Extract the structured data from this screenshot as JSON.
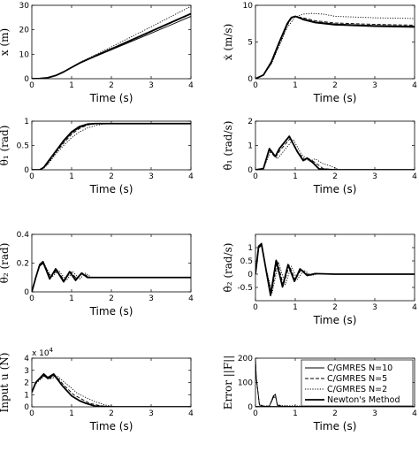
{
  "chart_data": [
    {
      "id": "x",
      "type": "line",
      "ylabel": "x (m)",
      "xlabel": "Time (s)",
      "xlim": [
        0,
        4
      ],
      "ylim": [
        0,
        30
      ],
      "xticks": [
        0,
        1,
        2,
        3,
        4
      ],
      "yticks": [
        0,
        10,
        20,
        30
      ],
      "series": [
        {
          "x": [
            0,
            0.2,
            0.4,
            0.6,
            0.8,
            1.0,
            1.2,
            1.5,
            2.0,
            2.5,
            3.0,
            3.5,
            4.0
          ],
          "y": [
            0,
            0.1,
            0.4,
            1.3,
            2.8,
            4.6,
            6.3,
            8.4,
            11.8,
            15.2,
            18.6,
            22.0,
            25.5
          ]
        },
        {
          "x": [
            0,
            0.2,
            0.4,
            0.6,
            0.8,
            1.0,
            1.2,
            1.5,
            2.0,
            2.5,
            3.0,
            3.5,
            4.0
          ],
          "y": [
            0,
            0.1,
            0.4,
            1.3,
            2.8,
            4.6,
            6.3,
            8.5,
            12.0,
            15.6,
            19.2,
            22.8,
            26.4
          ]
        },
        {
          "x": [
            0,
            0.2,
            0.4,
            0.6,
            0.8,
            1.0,
            1.2,
            1.5,
            2.0,
            2.5,
            3.0,
            3.5,
            4.0
          ],
          "y": [
            0,
            0.1,
            0.4,
            1.3,
            2.8,
            4.7,
            6.6,
            9.0,
            13.0,
            17.1,
            21.2,
            25.4,
            29.6
          ]
        },
        {
          "x": [
            0,
            0.2,
            0.4,
            0.6,
            0.8,
            1.0,
            1.2,
            1.5,
            2.0,
            2.5,
            3.0,
            3.5,
            4.0
          ],
          "y": [
            0,
            0.1,
            0.4,
            1.3,
            2.8,
            4.6,
            6.4,
            8.6,
            12.2,
            15.8,
            19.4,
            23.0,
            26.6
          ]
        }
      ]
    },
    {
      "id": "xdot",
      "type": "line",
      "ylabel": "ẋ (m/s)",
      "xlabel": "Time (s)",
      "xlim": [
        0,
        4
      ],
      "ylim": [
        0,
        10
      ],
      "xticks": [
        0,
        1,
        2,
        3,
        4
      ],
      "yticks": [
        0,
        5,
        10
      ],
      "series": [
        {
          "x": [
            0,
            0.2,
            0.4,
            0.6,
            0.8,
            0.9,
            1.0,
            1.2,
            1.5,
            2.0,
            3.0,
            4.0
          ],
          "y": [
            0,
            0.5,
            2.3,
            5.0,
            7.6,
            8.4,
            8.5,
            8.0,
            7.6,
            7.3,
            7.1,
            7.0
          ]
        },
        {
          "x": [
            0,
            0.2,
            0.4,
            0.6,
            0.8,
            0.9,
            1.0,
            1.2,
            1.5,
            2.0,
            3.0,
            4.0
          ],
          "y": [
            0,
            0.5,
            2.1,
            4.7,
            7.3,
            8.2,
            8.5,
            8.3,
            7.9,
            7.6,
            7.4,
            7.3
          ]
        },
        {
          "x": [
            0,
            0.2,
            0.4,
            0.6,
            0.8,
            1.0,
            1.2,
            1.4,
            1.7,
            2.0,
            3.0,
            4.0
          ],
          "y": [
            0,
            0.5,
            2.0,
            4.5,
            7.0,
            8.4,
            8.8,
            8.9,
            8.8,
            8.5,
            8.3,
            8.2
          ]
        },
        {
          "x": [
            0,
            0.2,
            0.4,
            0.6,
            0.8,
            0.9,
            1.0,
            1.2,
            1.5,
            2.0,
            3.0,
            4.0
          ],
          "y": [
            0,
            0.5,
            2.3,
            5.0,
            7.5,
            8.3,
            8.5,
            8.1,
            7.7,
            7.4,
            7.2,
            7.1
          ]
        }
      ]
    },
    {
      "id": "theta1",
      "type": "line",
      "ylabel": "θ₁ (rad)",
      "xlabel": "Time (s)",
      "xlim": [
        0,
        4
      ],
      "ylim": [
        0,
        1
      ],
      "xticks": [
        0,
        1,
        2,
        3,
        4
      ],
      "yticks": [
        0,
        0.5,
        1
      ],
      "series": [
        {
          "x": [
            0,
            0.2,
            0.3,
            0.4,
            0.6,
            0.8,
            1.0,
            1.2,
            1.4,
            1.6,
            2.0,
            4.0
          ],
          "y": [
            0,
            0,
            0.05,
            0.15,
            0.37,
            0.58,
            0.76,
            0.87,
            0.93,
            0.95,
            0.95,
            0.95
          ]
        },
        {
          "x": [
            0,
            0.2,
            0.3,
            0.4,
            0.6,
            0.8,
            1.0,
            1.2,
            1.4,
            1.6,
            2.0,
            4.0
          ],
          "y": [
            0,
            0,
            0.04,
            0.13,
            0.35,
            0.55,
            0.73,
            0.85,
            0.92,
            0.95,
            0.95,
            0.95
          ]
        },
        {
          "x": [
            0,
            0.2,
            0.3,
            0.4,
            0.6,
            0.8,
            1.0,
            1.2,
            1.4,
            1.6,
            1.8,
            2.0,
            4.0
          ],
          "y": [
            0,
            0,
            0.03,
            0.11,
            0.32,
            0.5,
            0.66,
            0.78,
            0.86,
            0.91,
            0.94,
            0.95,
            0.95
          ]
        },
        {
          "x": [
            0,
            0.2,
            0.3,
            0.4,
            0.6,
            0.8,
            1.0,
            1.2,
            1.4,
            1.6,
            2.0,
            4.0
          ],
          "y": [
            0,
            0,
            0.05,
            0.16,
            0.38,
            0.6,
            0.78,
            0.89,
            0.94,
            0.95,
            0.95,
            0.95
          ]
        }
      ]
    },
    {
      "id": "theta1dot",
      "type": "line",
      "ylabel": "θ̇₁ (rad/s)",
      "xlabel": "Time (s)",
      "xlim": [
        0,
        4
      ],
      "ylim": [
        0,
        2
      ],
      "xticks": [
        0,
        1,
        2,
        3,
        4
      ],
      "yticks": [
        0,
        1,
        2
      ],
      "series": [
        {
          "x": [
            0,
            0.2,
            0.35,
            0.5,
            0.6,
            0.85,
            1.05,
            1.2,
            1.3,
            1.45,
            1.6,
            2.0,
            4.0
          ],
          "y": [
            0,
            0.05,
            0.85,
            0.55,
            0.85,
            1.35,
            0.75,
            0.4,
            0.5,
            0.3,
            0.05,
            0,
            0
          ]
        },
        {
          "x": [
            0,
            0.2,
            0.35,
            0.5,
            0.62,
            0.88,
            1.08,
            1.25,
            1.35,
            1.5,
            1.7,
            2.0,
            4.0
          ],
          "y": [
            0,
            0.05,
            0.8,
            0.5,
            0.8,
            1.3,
            0.7,
            0.4,
            0.45,
            0.3,
            0.05,
            0,
            0
          ]
        },
        {
          "x": [
            0,
            0.2,
            0.38,
            0.55,
            0.7,
            0.95,
            1.15,
            1.35,
            1.5,
            1.7,
            1.9,
            2.1,
            4.0
          ],
          "y": [
            0,
            0.05,
            0.75,
            0.45,
            0.75,
            1.25,
            0.65,
            0.35,
            0.45,
            0.25,
            0.15,
            0,
            0
          ]
        },
        {
          "x": [
            0,
            0.2,
            0.35,
            0.5,
            0.6,
            0.85,
            1.05,
            1.2,
            1.3,
            1.45,
            1.6,
            2.0,
            4.0
          ],
          "y": [
            0,
            0.05,
            0.87,
            0.55,
            0.87,
            1.38,
            0.75,
            0.38,
            0.48,
            0.28,
            0.03,
            0,
            0
          ]
        }
      ]
    },
    {
      "id": "theta2",
      "type": "line",
      "ylabel": "θ₂ (rad)",
      "xlabel": "Time (s)",
      "xlim": [
        0,
        4
      ],
      "ylim": [
        0,
        0.4
      ],
      "xticks": [
        0,
        1,
        2,
        3,
        4
      ],
      "yticks": [
        0,
        0.2,
        0.4
      ],
      "series": [
        {
          "x": [
            0,
            0.1,
            0.2,
            0.28,
            0.45,
            0.6,
            0.8,
            0.95,
            1.1,
            1.25,
            1.4,
            1.6,
            2.0,
            4.0
          ],
          "y": [
            0,
            0.1,
            0.19,
            0.2,
            0.1,
            0.15,
            0.08,
            0.14,
            0.09,
            0.13,
            0.1,
            0.1,
            0.1,
            0.1
          ]
        },
        {
          "x": [
            0,
            0.1,
            0.2,
            0.3,
            0.47,
            0.63,
            0.82,
            0.98,
            1.13,
            1.28,
            1.45,
            1.65,
            2.0,
            4.0
          ],
          "y": [
            0,
            0.1,
            0.18,
            0.2,
            0.1,
            0.15,
            0.08,
            0.14,
            0.09,
            0.13,
            0.1,
            0.1,
            0.1,
            0.1
          ]
        },
        {
          "x": [
            0,
            0.1,
            0.2,
            0.3,
            0.5,
            0.67,
            0.87,
            1.03,
            1.2,
            1.35,
            1.5,
            1.7,
            2.0,
            4.0
          ],
          "y": [
            0,
            0.1,
            0.18,
            0.2,
            0.1,
            0.15,
            0.08,
            0.14,
            0.09,
            0.13,
            0.1,
            0.1,
            0.1,
            0.1
          ]
        },
        {
          "x": [
            0,
            0.1,
            0.2,
            0.28,
            0.45,
            0.6,
            0.8,
            0.95,
            1.1,
            1.25,
            1.4,
            1.6,
            2.0,
            4.0
          ],
          "y": [
            0,
            0.1,
            0.19,
            0.21,
            0.09,
            0.16,
            0.07,
            0.14,
            0.08,
            0.13,
            0.1,
            0.1,
            0.1,
            0.1
          ]
        }
      ]
    },
    {
      "id": "theta2dot",
      "type": "line",
      "ylabel": "θ̇₂ (rad/s)",
      "xlabel": "Time (s)",
      "xlim": [
        0,
        4
      ],
      "ylim": [
        -1,
        1.5
      ],
      "xticks": [
        0,
        1,
        2,
        3,
        4
      ],
      "yticks": [
        -0.5,
        0,
        0.5,
        1
      ],
      "series": [
        {
          "x": [
            0,
            0.08,
            0.15,
            0.25,
            0.38,
            0.52,
            0.68,
            0.82,
            0.98,
            1.12,
            1.3,
            1.5,
            2.0,
            4.0
          ],
          "y": [
            0,
            1.0,
            1.1,
            0.3,
            -0.75,
            0.5,
            -0.45,
            0.35,
            -0.25,
            0.2,
            -0.05,
            0.02,
            0,
            0
          ]
        },
        {
          "x": [
            0,
            0.08,
            0.15,
            0.25,
            0.4,
            0.55,
            0.7,
            0.85,
            1.0,
            1.15,
            1.35,
            1.55,
            2.0,
            4.0
          ],
          "y": [
            0,
            1.0,
            1.08,
            0.3,
            -0.72,
            0.48,
            -0.42,
            0.33,
            -0.22,
            0.18,
            -0.05,
            0.02,
            0,
            0
          ]
        },
        {
          "x": [
            0,
            0.08,
            0.15,
            0.25,
            0.42,
            0.58,
            0.75,
            0.9,
            1.05,
            1.22,
            1.4,
            1.6,
            2.0,
            4.0
          ],
          "y": [
            0,
            1.0,
            1.05,
            0.3,
            -0.7,
            0.45,
            -0.4,
            0.3,
            -0.2,
            0.15,
            -0.05,
            0.02,
            0,
            0
          ]
        },
        {
          "x": [
            0,
            0.08,
            0.15,
            0.25,
            0.38,
            0.52,
            0.68,
            0.82,
            0.98,
            1.12,
            1.3,
            1.5,
            2.0,
            4.0
          ],
          "y": [
            0,
            1.05,
            1.15,
            0.3,
            -0.8,
            0.52,
            -0.48,
            0.36,
            -0.27,
            0.2,
            -0.05,
            0.02,
            0,
            0
          ]
        }
      ]
    },
    {
      "id": "input",
      "type": "line",
      "ylabel": "Input u (N)",
      "xlabel": "Time (s)",
      "xlim": [
        0,
        4
      ],
      "ylim": [
        0,
        4
      ],
      "xticks": [
        0,
        1,
        2,
        3,
        4
      ],
      "yticks": [
        0,
        1,
        2,
        3,
        4
      ],
      "y_exponent_label": "x 10",
      "y_exponent_power": "4",
      "series": [
        {
          "x": [
            0,
            0.1,
            0.3,
            0.4,
            0.55,
            0.75,
            1.0,
            1.2,
            1.35,
            1.6,
            2.0,
            4.0
          ],
          "y": [
            1.2,
            2.0,
            2.6,
            2.3,
            2.6,
            1.8,
            0.9,
            0.5,
            0.3,
            0.05,
            0,
            0
          ]
        },
        {
          "x": [
            0,
            0.1,
            0.3,
            0.42,
            0.6,
            0.8,
            1.05,
            1.3,
            1.45,
            1.7,
            2.0,
            4.0
          ],
          "y": [
            1.2,
            2.0,
            2.55,
            2.3,
            2.55,
            1.8,
            1.0,
            0.55,
            0.3,
            0.1,
            0,
            0
          ]
        },
        {
          "x": [
            0,
            0.1,
            0.3,
            0.45,
            0.65,
            0.9,
            1.15,
            1.4,
            1.6,
            1.85,
            2.1,
            4.0
          ],
          "y": [
            1.2,
            1.9,
            2.5,
            2.3,
            2.5,
            1.8,
            1.1,
            0.7,
            0.4,
            0.15,
            0,
            0
          ]
        },
        {
          "x": [
            0,
            0.1,
            0.3,
            0.4,
            0.55,
            0.75,
            1.0,
            1.2,
            1.35,
            1.6,
            2.0,
            4.0
          ],
          "y": [
            1.2,
            2.0,
            2.7,
            2.4,
            2.7,
            1.8,
            0.9,
            0.5,
            0.3,
            0.05,
            0,
            0
          ]
        }
      ]
    },
    {
      "id": "error",
      "type": "line",
      "ylabel": "Error ||F||",
      "xlabel": "Time (s)",
      "xlim": [
        0,
        4
      ],
      "ylim": [
        0,
        200
      ],
      "xticks": [
        0,
        1,
        2,
        3,
        4
      ],
      "yticks": [
        0,
        100,
        200
      ],
      "legend_position": "top-right",
      "series": [
        {
          "name": "C/GMRES N=10",
          "x": [
            0,
            0.02,
            0.1,
            0.2,
            0.35,
            0.45,
            0.5,
            0.55,
            0.65,
            1.0,
            1.5,
            2.0,
            4.0
          ],
          "y": [
            195,
            120,
            8,
            2,
            2,
            45,
            52,
            6,
            2,
            1,
            0.5,
            0,
            0
          ]
        },
        {
          "name": "C/GMRES N=5",
          "x": [
            0,
            0.02,
            0.1,
            0.2,
            0.35,
            0.45,
            0.5,
            0.55,
            0.65,
            1.0,
            1.5,
            2.0,
            4.0
          ],
          "y": [
            195,
            120,
            8,
            3,
            3,
            40,
            48,
            8,
            3,
            2,
            1,
            0,
            0
          ]
        },
        {
          "name": "C/GMRES N=2",
          "x": [
            0,
            0.02,
            0.1,
            0.2,
            0.35,
            0.45,
            0.5,
            0.55,
            0.65,
            1.0,
            1.5,
            2.0,
            4.0
          ],
          "y": [
            195,
            120,
            10,
            4,
            4,
            35,
            42,
            10,
            5,
            4,
            2,
            0,
            0
          ]
        },
        {
          "name": "Newton's Method",
          "x": [
            0,
            4.0
          ],
          "y": [
            0,
            0
          ]
        }
      ]
    }
  ]
}
